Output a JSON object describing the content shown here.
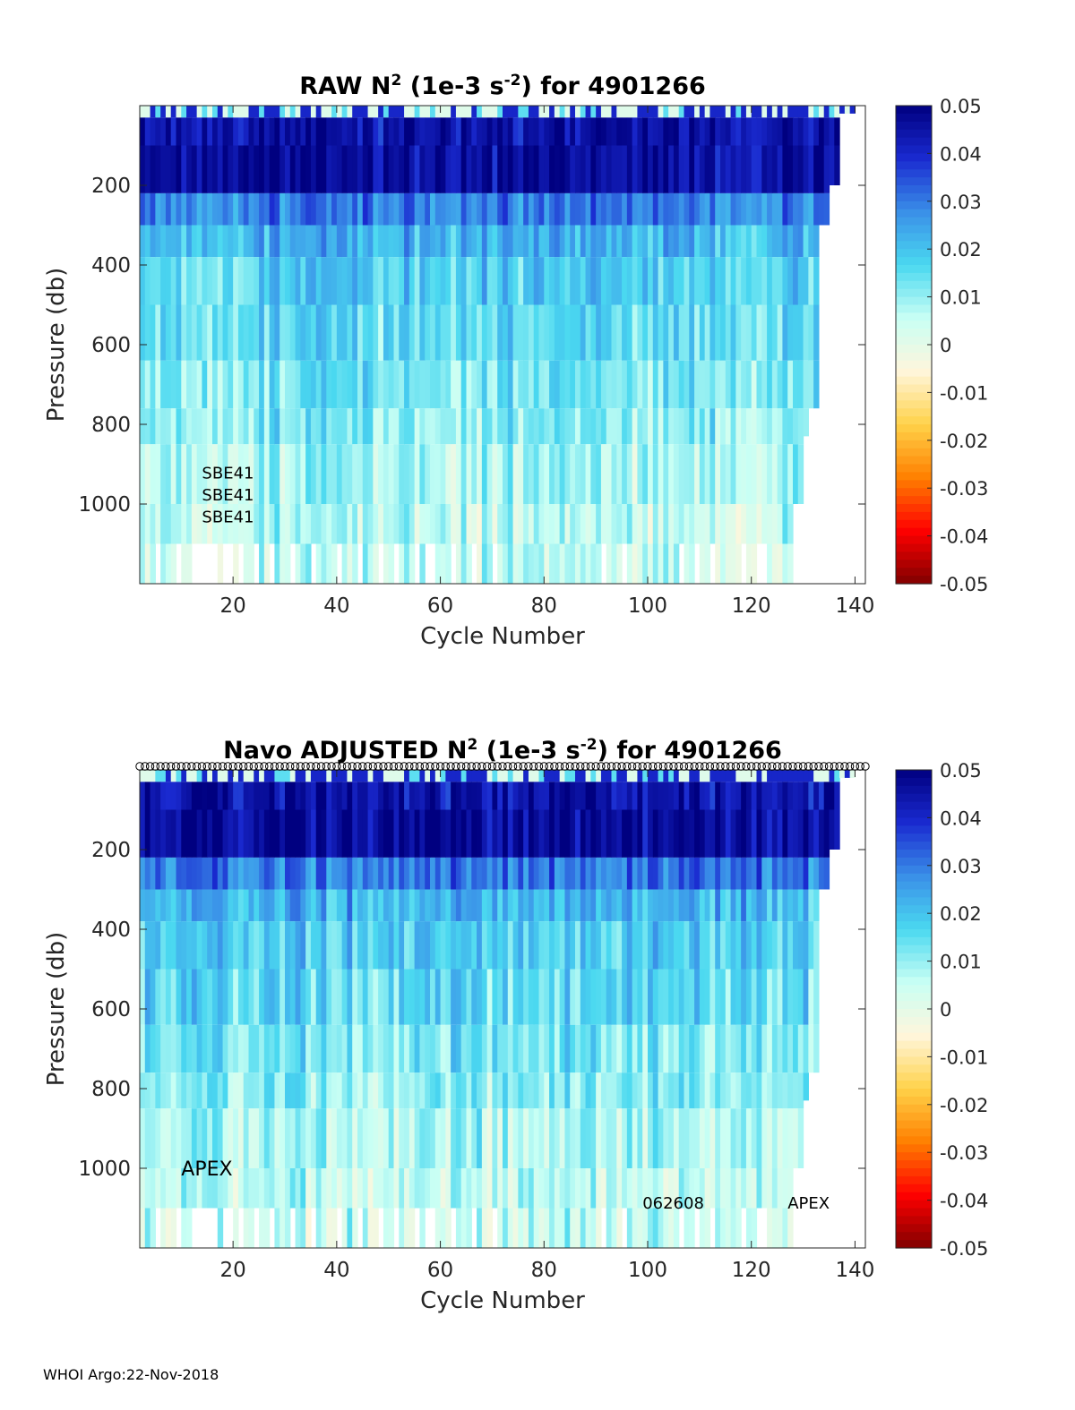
{
  "footer": "WHOI Argo:22-Nov-2018",
  "colors": {
    "colormap_stops": [
      "#800000",
      "#ff0000",
      "#ff8000",
      "#ffd24a",
      "#fff6dc",
      "#c8fff4",
      "#4ad8f0",
      "#3a8fe8",
      "#1a2ad0",
      "#000080"
    ],
    "axis": "#262626",
    "background": "#ffffff"
  },
  "panels": [
    {
      "id": "raw",
      "title_main": "RAW N",
      "title_sup1": "2",
      "title_mid": " (1e-3 s",
      "title_sup2": "-2",
      "title_end": ") for 4901266",
      "annotations": [
        {
          "text": "SBE41",
          "cycle": 14,
          "pressure": 918,
          "size": "small"
        },
        {
          "text": "SBE41",
          "cycle": 14,
          "pressure": 973,
          "size": "small"
        },
        {
          "text": "SBE41",
          "cycle": 14,
          "pressure": 1028,
          "size": "small"
        }
      ],
      "has_marker_row": false
    },
    {
      "id": "adjusted",
      "title_main": "Navo  ADJUSTED N",
      "title_sup1": "2",
      "title_mid": " (1e-3 s",
      "title_sup2": "-2",
      "title_end": ") for 4901266",
      "annotations": [
        {
          "text": "APEX",
          "cycle": 10,
          "pressure": 1000,
          "size": "large"
        },
        {
          "text": "062608",
          "cycle": 99,
          "pressure": 1083,
          "size": "small"
        },
        {
          "text": "APEX",
          "cycle": 127,
          "pressure": 1083,
          "size": "small"
        }
      ],
      "has_marker_row": true,
      "marker_row_label": "o"
    }
  ],
  "chart_data": {
    "type": "heatmap",
    "xlabel": "Cycle Number",
    "ylabel": "Pressure (db)",
    "xlim": [
      2,
      142
    ],
    "ylim": [
      1200,
      0
    ],
    "xticks": [
      20,
      40,
      60,
      80,
      100,
      120,
      140
    ],
    "yticks": [
      200,
      400,
      600,
      800,
      1000
    ],
    "clim": [
      -0.05,
      0.05
    ],
    "colorbar_ticks": [
      "0.05",
      "0.04",
      "0.03",
      "0.02",
      "0.01",
      "0",
      "-0.01",
      "-0.02",
      "-0.03",
      "-0.04",
      "-0.05"
    ],
    "colorbar_values": [
      0.05,
      0.04,
      0.03,
      0.02,
      0.01,
      0,
      -0.01,
      -0.02,
      -0.03,
      -0.04,
      -0.05
    ],
    "depth_bands": [
      {
        "p_top": 0,
        "p_bot": 30,
        "mean": 0.012
      },
      {
        "p_top": 30,
        "p_bot": 100,
        "mean": 0.045
      },
      {
        "p_top": 100,
        "p_bot": 220,
        "mean": 0.047
      },
      {
        "p_top": 220,
        "p_bot": 300,
        "mean": 0.03
      },
      {
        "p_top": 300,
        "p_bot": 380,
        "mean": 0.022
      },
      {
        "p_top": 380,
        "p_bot": 500,
        "mean": 0.018
      },
      {
        "p_top": 500,
        "p_bot": 640,
        "mean": 0.016
      },
      {
        "p_top": 640,
        "p_bot": 760,
        "mean": 0.013
      },
      {
        "p_top": 760,
        "p_bot": 850,
        "mean": 0.011
      },
      {
        "p_top": 850,
        "p_bot": 1000,
        "mean": 0.008
      },
      {
        "p_top": 1000,
        "p_bot": 1100,
        "mean": 0.006
      },
      {
        "p_top": 1100,
        "p_bot": 1200,
        "mean": 0.005
      }
    ],
    "profile_max_depth": [
      {
        "cycle_from": 2,
        "cycle_to": 128,
        "max_pressure": 1200
      },
      {
        "cycle_from": 128,
        "cycle_to": 130,
        "max_pressure": 1000
      },
      {
        "cycle_from": 130,
        "cycle_to": 131,
        "max_pressure": 830
      },
      {
        "cycle_from": 131,
        "cycle_to": 133,
        "max_pressure": 760
      },
      {
        "cycle_from": 133,
        "cycle_to": 135,
        "max_pressure": 300
      },
      {
        "cycle_from": 135,
        "cycle_to": 137,
        "max_pressure": 200
      },
      {
        "cycle_from": 137,
        "cycle_to": 140,
        "max_pressure": 20
      }
    ],
    "missing_deep_cycles": [
      5,
      9,
      12,
      13,
      14,
      15,
      16,
      18,
      19,
      21,
      24,
      27,
      31,
      35,
      40,
      44,
      48,
      51,
      55,
      57,
      58,
      62,
      66,
      70,
      91,
      95,
      106,
      109,
      112,
      118,
      121,
      122
    ]
  }
}
